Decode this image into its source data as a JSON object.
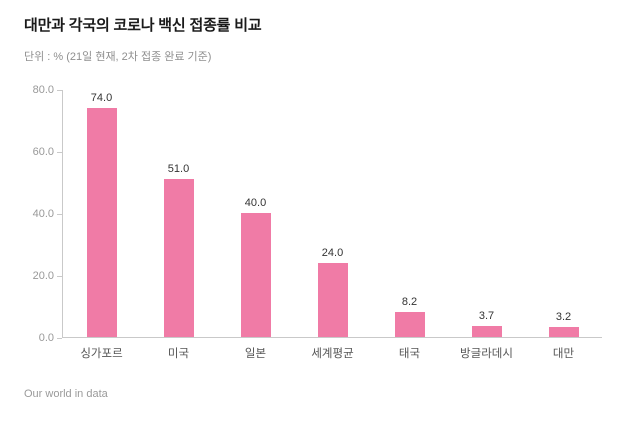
{
  "header": {
    "title": "대만과 각국의 코로나 백신 접종률 비교",
    "subtitle": "단위 : % (21일 현재, 2차 접종 완료 기준)"
  },
  "footer": {
    "source": "Our world in data"
  },
  "chart_data": {
    "type": "bar",
    "title": "대만과 각국의 코로나 백신 접종률 비교",
    "subtitle": "단위 : % (21일 현재, 2차 접종 완료 기준)",
    "categories": [
      "싱가포르",
      "미국",
      "일본",
      "세계평균",
      "태국",
      "방글라데시",
      "대만"
    ],
    "values": [
      74.0,
      51.0,
      40.0,
      24.0,
      8.2,
      3.7,
      3.2
    ],
    "value_labels": [
      "74.0",
      "51.0",
      "40.0",
      "24.0",
      "8.2",
      "3.7",
      "3.2"
    ],
    "xlabel": "",
    "ylabel": "",
    "ylim": [
      0,
      80
    ],
    "yticks": [
      0,
      20,
      40,
      60,
      80
    ],
    "ytick_labels": [
      "0.0",
      "20.0",
      "40.0",
      "60.0",
      "80.0"
    ],
    "bar_color": "#f07ba6",
    "axis_color": "#c9c9c9",
    "grid": false,
    "legend": "none",
    "source": "Our world in data"
  }
}
